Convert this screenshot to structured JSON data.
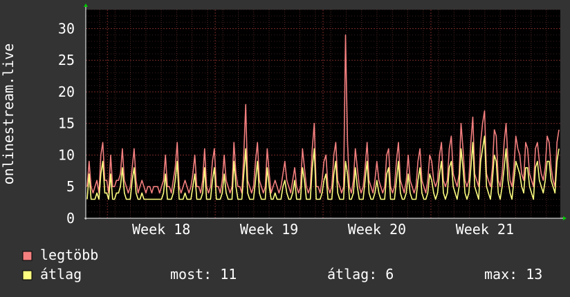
{
  "chart_data": {
    "type": "line",
    "ylabel": "onlinestream.live",
    "ylim": [
      0,
      33
    ],
    "yticks": [
      0,
      5,
      10,
      15,
      20,
      25,
      30
    ],
    "x_range_weeks": [
      17.3,
      21.7
    ],
    "xticks": [
      {
        "week": 18,
        "label": "Week 18"
      },
      {
        "week": 19,
        "label": "Week 19"
      },
      {
        "week": 20,
        "label": "Week 20"
      },
      {
        "week": 21,
        "label": "Week 21"
      }
    ],
    "grid": true,
    "series": [
      {
        "name": "legtöbb",
        "color": "#f47f7f",
        "values": [
          5,
          9,
          5,
          4,
          5,
          6,
          4,
          10,
          12,
          6,
          6,
          4,
          10,
          5,
          5,
          6,
          6,
          7,
          11,
          6,
          5,
          4,
          5,
          8,
          11,
          6,
          4,
          5,
          6,
          5,
          4,
          5,
          5,
          4,
          5,
          5,
          5,
          4,
          5,
          6,
          10,
          5,
          5,
          4,
          6,
          8,
          12,
          5,
          4,
          5,
          6,
          5,
          4,
          5,
          7,
          10,
          5,
          5,
          4,
          6,
          11,
          5,
          4,
          5,
          9,
          11,
          5,
          5,
          4,
          6,
          10,
          6,
          5,
          4,
          5,
          12,
          7,
          5,
          5,
          4,
          10,
          18,
          6,
          5,
          4,
          5,
          9,
          12,
          6,
          5,
          4,
          5,
          11,
          7,
          4,
          5,
          6,
          5,
          4,
          5,
          7,
          9,
          6,
          5,
          4,
          6,
          8,
          5,
          4,
          5,
          11,
          8,
          5,
          4,
          5,
          11,
          15,
          5,
          5,
          4,
          6,
          9,
          10,
          5,
          4,
          5,
          10,
          12,
          6,
          5,
          4,
          5,
          29,
          12,
          5,
          4,
          6,
          11,
          8,
          5,
          4,
          5,
          8,
          12,
          6,
          5,
          4,
          6,
          9,
          6,
          5,
          4,
          5,
          10,
          11,
          5,
          4,
          5,
          9,
          12,
          6,
          5,
          4,
          6,
          10,
          6,
          5,
          4,
          5,
          9,
          11,
          6,
          5,
          4,
          6,
          10,
          9,
          6,
          5,
          6,
          10,
          12,
          6,
          5,
          6,
          11,
          13,
          7,
          6,
          5,
          7,
          15,
          11,
          6,
          5,
          6,
          12,
          16,
          7,
          6,
          5,
          12,
          15,
          17,
          7,
          6,
          5,
          8,
          14,
          13,
          6,
          5,
          7,
          12,
          15,
          9,
          6,
          5,
          8,
          13,
          11,
          10,
          7,
          6,
          12,
          11,
          7,
          6,
          5,
          11,
          12,
          9,
          7,
          6,
          8,
          13,
          12,
          8,
          6,
          5,
          12,
          14
        ],
        "summary": {}
      },
      {
        "name": "átlag",
        "color": "#ffff80",
        "values": [
          3,
          7,
          3,
          3,
          3,
          4,
          3,
          7,
          9,
          4,
          4,
          3,
          7,
          3,
          3,
          4,
          4,
          5,
          8,
          4,
          3,
          3,
          3,
          6,
          8,
          4,
          3,
          3,
          4,
          3,
          3,
          3,
          3,
          3,
          3,
          3,
          3,
          3,
          3,
          4,
          7,
          3,
          3,
          3,
          4,
          6,
          9,
          3,
          3,
          3,
          4,
          3,
          3,
          3,
          5,
          7,
          3,
          3,
          3,
          4,
          8,
          3,
          3,
          3,
          6,
          8,
          3,
          3,
          3,
          4,
          7,
          4,
          3,
          3,
          3,
          9,
          5,
          3,
          3,
          3,
          7,
          11,
          4,
          3,
          3,
          3,
          6,
          9,
          4,
          3,
          3,
          3,
          8,
          5,
          3,
          3,
          4,
          3,
          3,
          3,
          5,
          6,
          4,
          3,
          3,
          4,
          6,
          3,
          3,
          3,
          8,
          6,
          3,
          3,
          3,
          8,
          11,
          3,
          3,
          3,
          4,
          6,
          7,
          3,
          3,
          3,
          7,
          9,
          4,
          3,
          3,
          3,
          9,
          7,
          3,
          3,
          4,
          8,
          5,
          3,
          3,
          3,
          6,
          9,
          4,
          3,
          3,
          4,
          6,
          4,
          3,
          3,
          3,
          7,
          8,
          3,
          3,
          3,
          6,
          9,
          4,
          3,
          3,
          4,
          7,
          4,
          3,
          3,
          3,
          6,
          8,
          4,
          3,
          3,
          4,
          7,
          6,
          4,
          3,
          4,
          7,
          9,
          4,
          3,
          4,
          8,
          9,
          5,
          4,
          3,
          5,
          11,
          8,
          4,
          3,
          4,
          8,
          12,
          5,
          4,
          3,
          9,
          11,
          13,
          5,
          4,
          3,
          6,
          10,
          9,
          4,
          3,
          5,
          8,
          11,
          6,
          4,
          3,
          6,
          9,
          8,
          7,
          5,
          4,
          8,
          8,
          5,
          4,
          3,
          8,
          9,
          6,
          5,
          4,
          6,
          9,
          9,
          6,
          5,
          4,
          9,
          11
        ],
        "summary": {
          "most_label": "most:",
          "most_value": "11",
          "atlag_label": "átlag:",
          "atlag_value": "6",
          "max_label": "max:",
          "max_value": "13"
        }
      }
    ]
  }
}
